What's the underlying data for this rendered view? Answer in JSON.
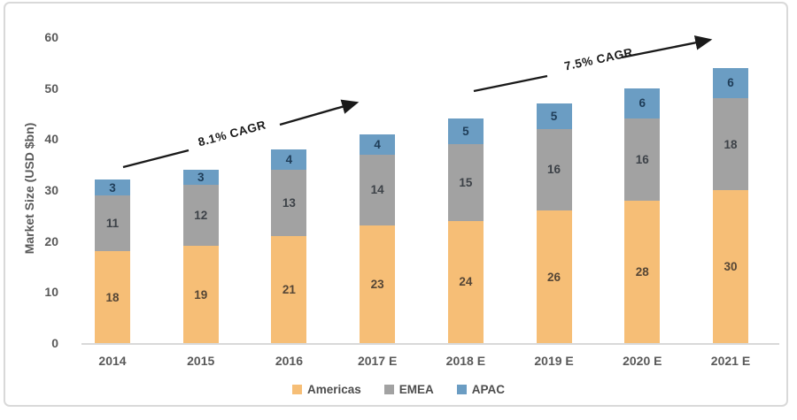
{
  "chart_data": {
    "type": "bar",
    "stacked": true,
    "title": "",
    "xlabel": "",
    "ylabel": "Market Size (USD $bn)",
    "ylim": [
      0,
      60
    ],
    "ytick_step": 10,
    "grid": false,
    "legend_position": "bottom",
    "categories": [
      "2014",
      "2015",
      "2016",
      "2017 E",
      "2018 E",
      "2019 E",
      "2020 E",
      "2021 E"
    ],
    "series": [
      {
        "name": "Americas",
        "color": "#F6BE76",
        "values": [
          18,
          19,
          21,
          23,
          24,
          26,
          28,
          30
        ]
      },
      {
        "name": "EMEA",
        "color": "#A2A2A2",
        "values": [
          11,
          12,
          13,
          14,
          15,
          16,
          16,
          18
        ]
      },
      {
        "name": "APAC",
        "color": "#6B9DC3",
        "values": [
          3,
          3,
          4,
          4,
          5,
          5,
          6,
          6
        ]
      }
    ],
    "totals": [
      32,
      34,
      38,
      41,
      44,
      47,
      50,
      54
    ],
    "annotations": [
      {
        "text": "8.1% CAGR",
        "span": "2014-2017E"
      },
      {
        "text": "7.5% CAGR",
        "span": "2018E-2021E"
      }
    ],
    "axis_color": "#595959",
    "baseline_color": "#D9D9D9",
    "arrow_color": "#1A1A1A"
  }
}
